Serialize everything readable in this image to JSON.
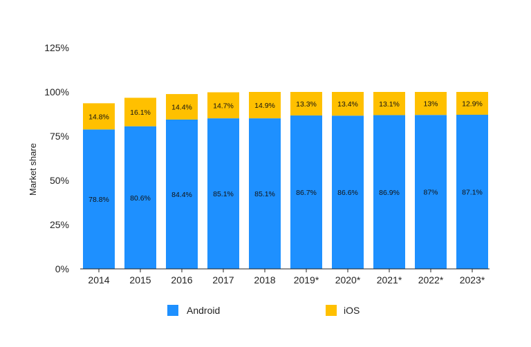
{
  "chart_data": {
    "type": "bar",
    "stacked": true,
    "categories": [
      "2014",
      "2015",
      "2016",
      "2017",
      "2018",
      "2019*",
      "2020*",
      "2021*",
      "2022*",
      "2023*"
    ],
    "series": [
      {
        "name": "Android",
        "values": [
          78.8,
          80.6,
          84.4,
          85.1,
          85.1,
          86.7,
          86.6,
          86.9,
          87,
          87.1
        ],
        "labels": [
          "78.8%",
          "80.6%",
          "84.4%",
          "85.1%",
          "85.1%",
          "86.7%",
          "86.6%",
          "86.9%",
          "87%",
          "87.1%"
        ],
        "color": "#1e90ff"
      },
      {
        "name": "iOS",
        "values": [
          14.8,
          16.1,
          14.4,
          14.7,
          14.9,
          13.3,
          13.4,
          13.1,
          13,
          12.9
        ],
        "labels": [
          "14.8%",
          "16.1%",
          "14.4%",
          "14.7%",
          "14.9%",
          "13.3%",
          "13.4%",
          "13.1%",
          "13%",
          "12.9%"
        ],
        "color": "#ffc000"
      }
    ],
    "title": "",
    "xlabel": "",
    "ylabel": "Market share",
    "ylim": [
      0,
      125
    ],
    "yticks": [
      0,
      25,
      50,
      75,
      100,
      125
    ],
    "ytick_labels": [
      "0%",
      "25%",
      "50%",
      "75%",
      "100%",
      "125%"
    ],
    "grid": false,
    "legend": {
      "position": "bottom",
      "entries": [
        "Android",
        "iOS"
      ]
    }
  }
}
